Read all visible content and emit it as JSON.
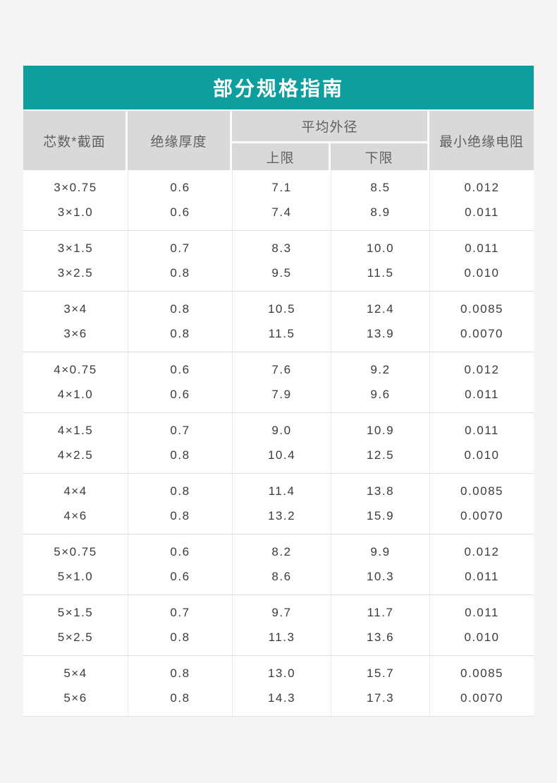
{
  "page": {
    "background_color": "#f5f5f6"
  },
  "table": {
    "title": "部分规格指南",
    "accent_color": "#0f9e9e",
    "header_bg_color": "#d9d9d9",
    "header": {
      "col_spec": "芯数*截面",
      "col_thickness": "绝缘厚度",
      "col_diameter": "平均外径",
      "col_upper": "上限",
      "col_lower": "下限",
      "col_resistance": "最小绝缘电阻"
    },
    "groups": [
      {
        "rows": [
          {
            "spec": "3×0.75",
            "thickness": "0.6",
            "upper": "7.1",
            "lower": "8.5",
            "resistance": "0.012"
          },
          {
            "spec": "3×1.0",
            "thickness": "0.6",
            "upper": "7.4",
            "lower": "8.9",
            "resistance": "0.011"
          }
        ]
      },
      {
        "rows": [
          {
            "spec": "3×1.5",
            "thickness": "0.7",
            "upper": "8.3",
            "lower": "10.0",
            "resistance": "0.011"
          },
          {
            "spec": "3×2.5",
            "thickness": "0.8",
            "upper": "9.5",
            "lower": "11.5",
            "resistance": "0.010"
          }
        ]
      },
      {
        "rows": [
          {
            "spec": "3×4",
            "thickness": "0.8",
            "upper": "10.5",
            "lower": "12.4",
            "resistance": "0.0085"
          },
          {
            "spec": "3×6",
            "thickness": "0.8",
            "upper": "11.5",
            "lower": "13.9",
            "resistance": "0.0070"
          }
        ]
      },
      {
        "rows": [
          {
            "spec": "4×0.75",
            "thickness": "0.6",
            "upper": "7.6",
            "lower": "9.2",
            "resistance": "0.012"
          },
          {
            "spec": "4×1.0",
            "thickness": "0.6",
            "upper": "7.9",
            "lower": "9.6",
            "resistance": "0.011"
          }
        ]
      },
      {
        "rows": [
          {
            "spec": "4×1.5",
            "thickness": "0.7",
            "upper": "9.0",
            "lower": "10.9",
            "resistance": "0.011"
          },
          {
            "spec": "4×2.5",
            "thickness": "0.8",
            "upper": "10.4",
            "lower": "12.5",
            "resistance": "0.010"
          }
        ]
      },
      {
        "rows": [
          {
            "spec": "4×4",
            "thickness": "0.8",
            "upper": "11.4",
            "lower": "13.8",
            "resistance": "0.0085"
          },
          {
            "spec": "4×6",
            "thickness": "0.8",
            "upper": "13.2",
            "lower": "15.9",
            "resistance": "0.0070"
          }
        ]
      },
      {
        "rows": [
          {
            "spec": "5×0.75",
            "thickness": "0.6",
            "upper": "8.2",
            "lower": "9.9",
            "resistance": "0.012"
          },
          {
            "spec": "5×1.0",
            "thickness": "0.6",
            "upper": "8.6",
            "lower": "10.3",
            "resistance": "0.011"
          }
        ]
      },
      {
        "rows": [
          {
            "spec": "5×1.5",
            "thickness": "0.7",
            "upper": "9.7",
            "lower": "11.7",
            "resistance": "0.011"
          },
          {
            "spec": "5×2.5",
            "thickness": "0.8",
            "upper": "11.3",
            "lower": "13.6",
            "resistance": "0.010"
          }
        ]
      },
      {
        "rows": [
          {
            "spec": "5×4",
            "thickness": "0.8",
            "upper": "13.0",
            "lower": "15.7",
            "resistance": "0.0085"
          },
          {
            "spec": "5×6",
            "thickness": "0.8",
            "upper": "14.3",
            "lower": "17.3",
            "resistance": "0.0070"
          }
        ]
      }
    ]
  }
}
